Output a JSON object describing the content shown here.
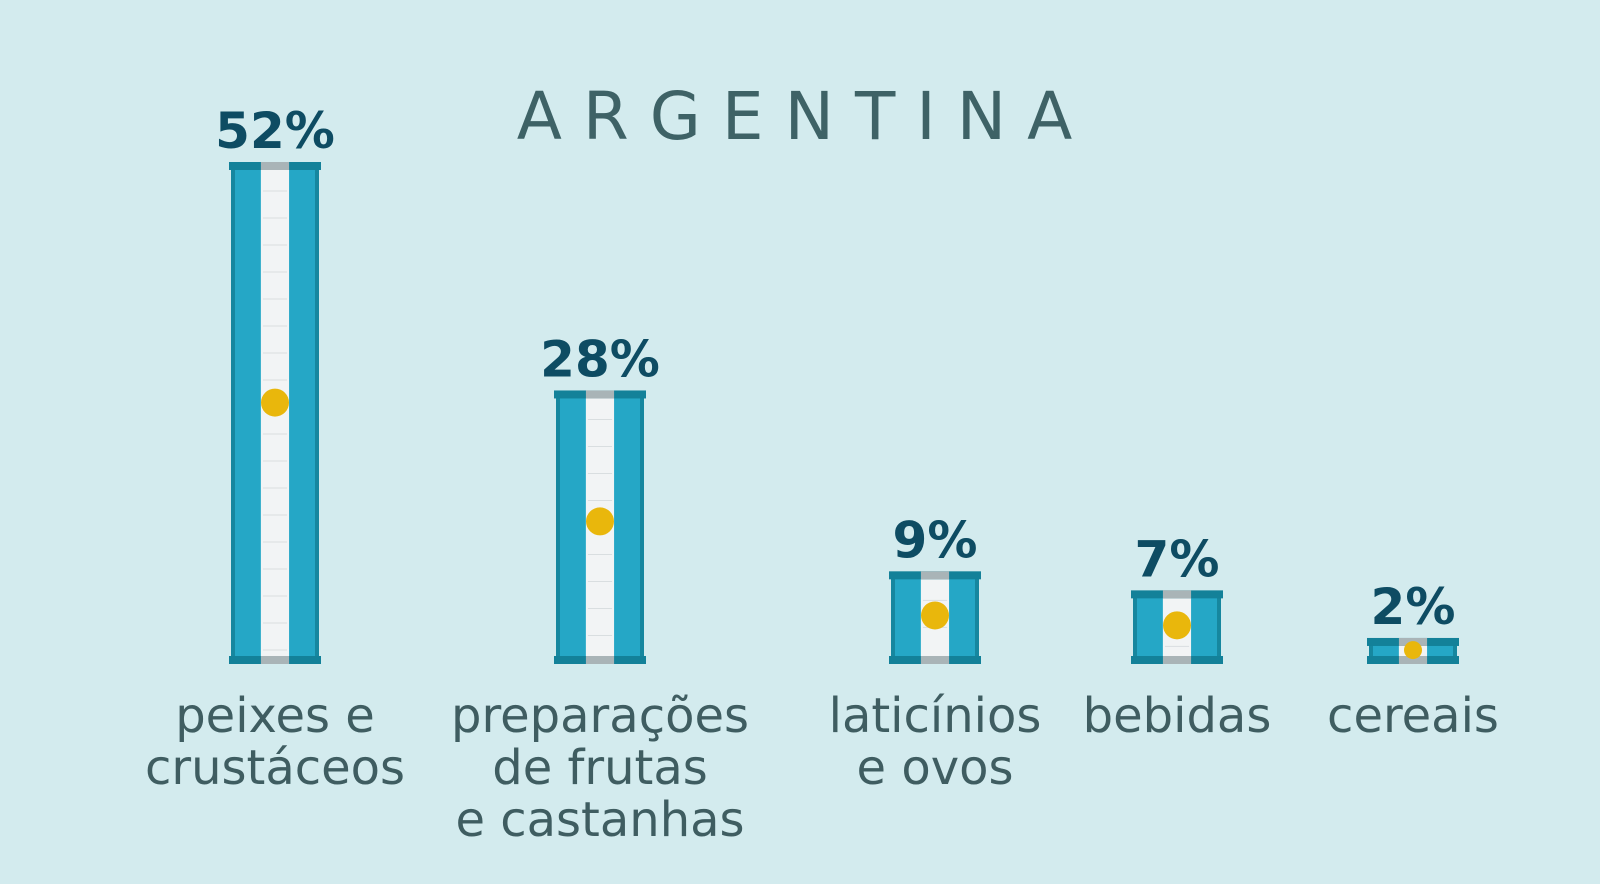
{
  "chart_data": {
    "type": "bar",
    "title": "ARGENTINA",
    "categories": [
      [
        "peixes e",
        "crustáceos"
      ],
      [
        "preparações",
        "de frutas",
        "e castanhas"
      ],
      [
        "laticínios",
        "e ovos"
      ],
      [
        "bebidas"
      ],
      [
        "cereais"
      ]
    ],
    "values": [
      52,
      28,
      9,
      7,
      2
    ],
    "value_labels": [
      "52%",
      "28%",
      "9%",
      "7%",
      "2%"
    ],
    "ylim": [
      0,
      52
    ],
    "grid": false,
    "bar_style": "argentine-flag",
    "colors": {
      "background": "#d3ebee",
      "bar_blue": "#25a7c6",
      "bar_blue_dark": "#16879f",
      "bar_white": "#f2f4f5",
      "cap_dark": "#138199",
      "cap_grey": "#a9b4b7",
      "sun": "#e9b70c",
      "value_text": "#0e4c63",
      "category_text": "#3f5d61",
      "title_text": "#3e6266"
    }
  }
}
